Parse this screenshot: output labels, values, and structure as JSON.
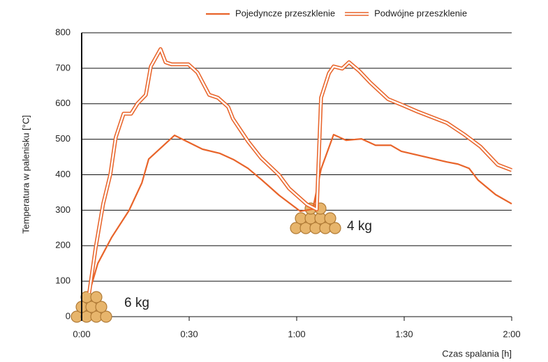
{
  "chart_data": {
    "type": "line",
    "y_label": "Temperatura w palenisku [°C]",
    "x_label": "Czas spalania [h]",
    "annotations": [
      "6 kg",
      "4 kg"
    ],
    "xlim": [
      0,
      120
    ],
    "ylim": [
      0,
      800
    ],
    "xticks": [
      {
        "value": 0,
        "label": "0:00"
      },
      {
        "value": 30,
        "label": "0:30"
      },
      {
        "value": 60,
        "label": "1:00"
      },
      {
        "value": 90,
        "label": "1:30"
      },
      {
        "value": 120,
        "label": "2:00"
      }
    ],
    "yticks": [
      0,
      100,
      200,
      300,
      400,
      500,
      600,
      700,
      800
    ],
    "grid": true,
    "legend": "top-right",
    "series": [
      {
        "name": "Pojedyncze przeszklenie",
        "color": "#e8642a",
        "style": "single",
        "x": [
          2.1,
          4.5,
          8.4,
          13.2,
          16.8,
          18.7,
          25.9,
          33.7,
          38.6,
          42.5,
          46.4,
          50.3,
          55.1,
          61,
          64.5,
          66.8,
          70.3,
          73.8,
          78.1,
          82,
          86.3,
          89.2,
          96,
          101.9,
          105,
          108.1,
          110.6,
          115.5,
          120
        ],
        "values": [
          67,
          150,
          224,
          299,
          377,
          444,
          511,
          472,
          460,
          442,
          418,
          385,
          342,
          297,
          303,
          416,
          513,
          497,
          501,
          483,
          483,
          466,
          450,
          436,
          430,
          418,
          385,
          344,
          318
        ]
      },
      {
        "name": "Podwójne przeszklenie",
        "color": "#e8642a",
        "style": "double",
        "x": [
          2.1,
          3.9,
          6,
          8,
          9.5,
          11.7,
          13.8,
          15.6,
          17.9,
          19.3,
          22,
          23.4,
          25.1,
          29.8,
          32.3,
          35.6,
          38,
          40.9,
          42.2,
          46.5,
          50,
          55.1,
          57.9,
          62.9,
          65.6,
          66.8,
          69,
          70.3,
          72.7,
          74.6,
          77.5,
          80.5,
          85.5,
          89.8,
          93.7,
          101.9,
          106.8,
          111.3,
          116.1,
          120
        ],
        "values": [
          67,
          194,
          318,
          401,
          505,
          572,
          572,
          601,
          625,
          705,
          754,
          717,
          711,
          711,
          688,
          625,
          617,
          591,
          558,
          493,
          448,
          399,
          361,
          316,
          302,
          617,
          686,
          705,
          699,
          717,
          692,
          660,
          613,
          595,
          578,
          546,
          513,
          479,
          428,
          413
        ]
      }
    ]
  }
}
